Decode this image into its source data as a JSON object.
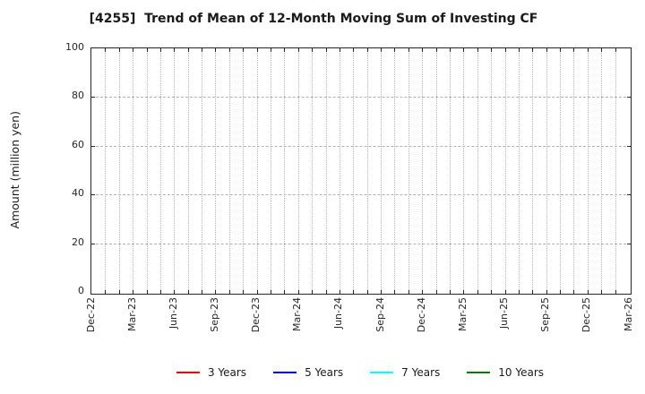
{
  "figure": {
    "title": "[4255]  Trend of Mean of 12-Month Moving Sum of Investing CF"
  },
  "chart_data": {
    "type": "line",
    "title": "[4255]  Trend of Mean of 12-Month Moving Sum of Investing CF",
    "xlabel": "",
    "ylabel": "Amount (million yen)",
    "ylim": [
      0,
      100
    ],
    "yticks": [
      0,
      20,
      40,
      60,
      80,
      100
    ],
    "x_tick_labels": [
      "Dec-22",
      "Mar-23",
      "Jun-23",
      "Sep-23",
      "Dec-23",
      "Mar-24",
      "Jun-24",
      "Sep-24",
      "Dec-24",
      "Mar-25",
      "Jun-25",
      "Sep-25",
      "Dec-25",
      "Mar-26"
    ],
    "x_minor_gridlines_per_label_interval": 3,
    "grid": true,
    "legend_position": "bottom",
    "series": [
      {
        "name": "3 Years",
        "color": "#ff0000",
        "values": []
      },
      {
        "name": "5 Years",
        "color": "#0000ff",
        "values": []
      },
      {
        "name": "7 Years",
        "color": "#00ffff",
        "values": []
      },
      {
        "name": "10 Years",
        "color": "#008000",
        "values": []
      }
    ],
    "plotted_data_visible": false
  },
  "colors": {
    "frame": "#262626",
    "grid": "#b0b0b0",
    "text": "#1a1a1a",
    "background": "#ffffff"
  }
}
